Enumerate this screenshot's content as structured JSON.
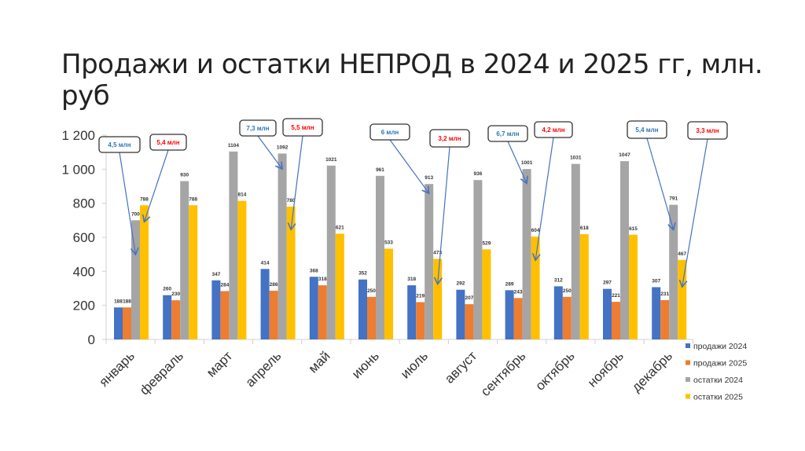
{
  "chart_data": {
    "type": "bar",
    "title": "Продажи и остатки НЕПРОД в 2024 и 2025 гг, млн. руб",
    "xlabel": "",
    "ylabel": "",
    "ylim": [
      0,
      1200
    ],
    "yticks": [
      "0",
      "200",
      "400",
      "600",
      "800",
      "1 000",
      "1 200"
    ],
    "ytick_values": [
      0,
      200,
      400,
      600,
      800,
      1000,
      1200
    ],
    "grid": false,
    "legend_position": "bottom-right",
    "categories": [
      "январь",
      "февраль",
      "март",
      "апрель",
      "май",
      "июнь",
      "июль",
      "август",
      "сентябрь",
      "октябрь",
      "ноябрь",
      "декабрь"
    ],
    "series": [
      {
        "name": "продажи 2024",
        "color": "#4472C4",
        "values": [
          188,
          260,
          347,
          414,
          368,
          352,
          318,
          292,
          289,
          312,
          297,
          307
        ]
      },
      {
        "name": "продажи 2025",
        "color": "#ED7D31",
        "values": [
          188,
          230,
          284,
          286,
          318,
          250,
          219,
          207,
          243,
          250,
          221,
          231
        ]
      },
      {
        "name": "остатки 2024",
        "color": "#A5A5A5",
        "values": [
          700,
          930,
          1104,
          1092,
          1021,
          961,
          913,
          936,
          1001,
          1031,
          1047,
          791
        ]
      },
      {
        "name": "остатки 2025",
        "color": "#FFC000",
        "values": [
          788,
          788,
          814,
          780,
          621,
          533,
          473,
          529,
          604,
          618,
          615,
          467
        ]
      }
    ],
    "annotations": [
      {
        "text": "4,5 млн",
        "color": "#2E75B6",
        "series": 2,
        "category": 0
      },
      {
        "text": "5,4 млн",
        "color": "#FF0000",
        "series": 3,
        "category": 0
      },
      {
        "text": "7,3 млн",
        "color": "#2E75B6",
        "series": 2,
        "category": 3
      },
      {
        "text": "5,5 млн",
        "color": "#FF0000",
        "series": 3,
        "category": 3
      },
      {
        "text": "6 млн",
        "color": "#2E75B6",
        "series": 2,
        "category": 6
      },
      {
        "text": "3,2 млн",
        "color": "#FF0000",
        "series": 3,
        "category": 6
      },
      {
        "text": "6,7 млн",
        "color": "#2E75B6",
        "series": 2,
        "category": 8
      },
      {
        "text": "4,2 млн",
        "color": "#FF0000",
        "series": 3,
        "category": 8
      },
      {
        "text": "5,4 млн",
        "color": "#2E75B6",
        "series": 2,
        "category": 11
      },
      {
        "text": "3,3 млн",
        "color": "#FF0000",
        "series": 3,
        "category": 11
      }
    ]
  }
}
